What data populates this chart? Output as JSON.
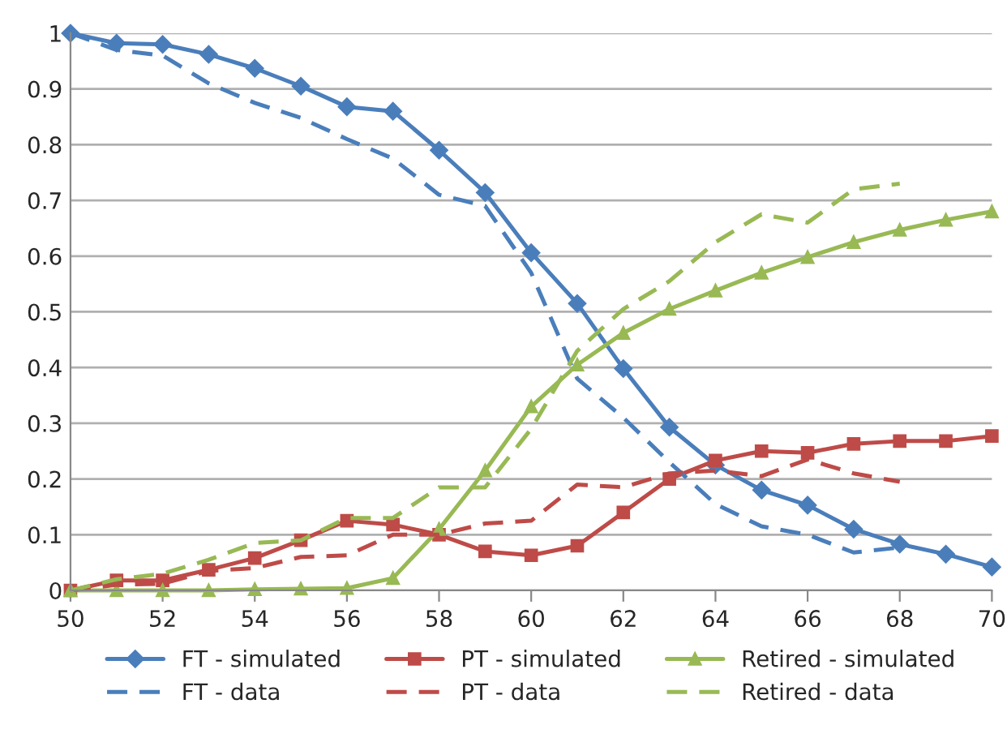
{
  "chart_data": {
    "type": "line",
    "x": [
      50,
      51,
      52,
      53,
      54,
      55,
      56,
      57,
      58,
      59,
      60,
      61,
      62,
      63,
      64,
      65,
      66,
      67,
      68,
      69,
      70
    ],
    "series": [
      {
        "name": "FT - simulated",
        "color": "#4a7ebb",
        "marker": "diamond",
        "line_style": "solid",
        "values": [
          1,
          0.982,
          0.98,
          0.962,
          0.937,
          0.905,
          0.868,
          0.86,
          0.79,
          0.714,
          0.606,
          0.515,
          0.398,
          0.293,
          0.225,
          0.18,
          0.153,
          0.11,
          0.083,
          0.065,
          0.042
        ]
      },
      {
        "name": "PT - simulated",
        "color": "#be4b48",
        "marker": "square",
        "line_style": "solid",
        "values": [
          0,
          0.018,
          0.018,
          0.037,
          0.058,
          0.09,
          0.125,
          0.118,
          0.1,
          0.07,
          0.063,
          0.08,
          0.14,
          0.2,
          0.233,
          0.25,
          0.247,
          0.263,
          0.268,
          0.268,
          0.277
        ]
      },
      {
        "name": "Retired - simulated",
        "color": "#98b954",
        "marker": "triangle",
        "line_style": "solid",
        "values": [
          0,
          0,
          0,
          0,
          0.002,
          0.003,
          0.004,
          0.022,
          0.11,
          0.215,
          0.33,
          0.405,
          0.462,
          0.505,
          0.538,
          0.57,
          0.598,
          0.625,
          0.647,
          0.665,
          0.68
        ]
      },
      {
        "name": "FT - data",
        "color": "#4a7ebb",
        "marker": "none",
        "line_style": "dashed",
        "values": [
          1,
          0.97,
          0.96,
          0.91,
          0.875,
          0.848,
          0.81,
          0.775,
          0.71,
          0.69,
          0.57,
          0.38,
          0.31,
          0.23,
          0.155,
          0.115,
          0.1,
          0.068,
          0.077,
          null,
          null
        ]
      },
      {
        "name": "PT - data",
        "color": "#be4b48",
        "marker": "none",
        "line_style": "dashed",
        "values": [
          0,
          0.01,
          0.012,
          0.035,
          0.04,
          0.06,
          0.063,
          0.1,
          0.1,
          0.12,
          0.125,
          0.19,
          0.185,
          0.21,
          0.215,
          0.205,
          0.235,
          0.21,
          0.195,
          null,
          null
        ]
      },
      {
        "name": "Retired - data",
        "color": "#98b954",
        "marker": "none",
        "line_style": "dashed",
        "values": [
          0,
          0.02,
          0.03,
          0.055,
          0.085,
          0.09,
          0.13,
          0.13,
          0.185,
          0.185,
          0.29,
          0.43,
          0.505,
          0.555,
          0.625,
          0.675,
          0.66,
          0.72,
          0.73,
          null,
          null
        ]
      }
    ],
    "xlim": [
      50,
      70
    ],
    "xticks": [
      50,
      52,
      54,
      56,
      58,
      60,
      62,
      64,
      66,
      68,
      70
    ],
    "ylim": [
      0,
      1
    ],
    "yticks": [
      0,
      0.1,
      0.2,
      0.3,
      0.4,
      0.5,
      0.6,
      0.7,
      0.8,
      0.9,
      1
    ],
    "grid": "y",
    "legend": "bottom"
  }
}
